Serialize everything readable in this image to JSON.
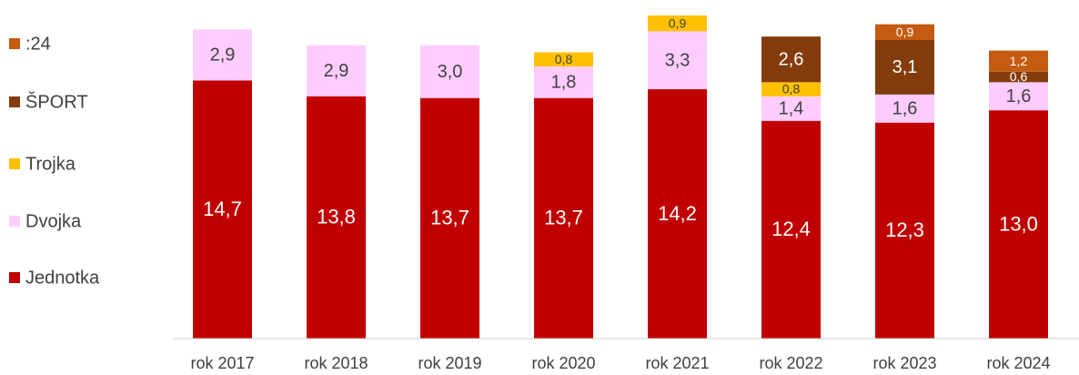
{
  "chart_data": {
    "type": "stacked_bar",
    "categories": [
      "rok 2017",
      "rok 2018",
      "rok 2019",
      "rok 2020",
      "rok 2021",
      "rok 2022",
      "rok 2023",
      "rok 2024"
    ],
    "series": [
      {
        "name": "Jednotka",
        "color": "#c00000",
        "values": [
          14.7,
          13.8,
          13.7,
          13.7,
          14.2,
          12.4,
          12.3,
          13.0
        ],
        "value_labels": [
          "14,7",
          "13,8",
          "13,7",
          "13,7",
          "14,2",
          "12,4",
          "12,3",
          "13,0"
        ]
      },
      {
        "name": "Dvojka",
        "color": "#ffccff",
        "values": [
          2.9,
          2.9,
          3.0,
          1.8,
          3.3,
          1.4,
          1.6,
          1.6
        ],
        "value_labels": [
          "2,9",
          "2,9",
          "3,0",
          "1,8",
          "3,3",
          "1,4",
          "1,6",
          "1,6"
        ]
      },
      {
        "name": "Trojka",
        "color": "#ffc000",
        "values": [
          null,
          null,
          null,
          0.8,
          0.9,
          0.8,
          null,
          null
        ],
        "value_labels": [
          null,
          null,
          null,
          "0,8",
          "0,9",
          "0,8",
          null,
          null
        ]
      },
      {
        "name": "ŠPORT",
        "color": "#843c0c",
        "values": [
          null,
          null,
          null,
          null,
          null,
          2.6,
          3.1,
          0.6
        ],
        "value_labels": [
          null,
          null,
          null,
          null,
          null,
          "2,6",
          "3,1",
          "0,6"
        ]
      },
      {
        "name": ":24",
        "color": "#c55a11",
        "values": [
          null,
          null,
          null,
          null,
          null,
          null,
          0.9,
          1.2
        ],
        "value_labels": [
          null,
          null,
          null,
          null,
          null,
          null,
          "0,9",
          "1,2"
        ]
      }
    ],
    "legend": "left"
  }
}
